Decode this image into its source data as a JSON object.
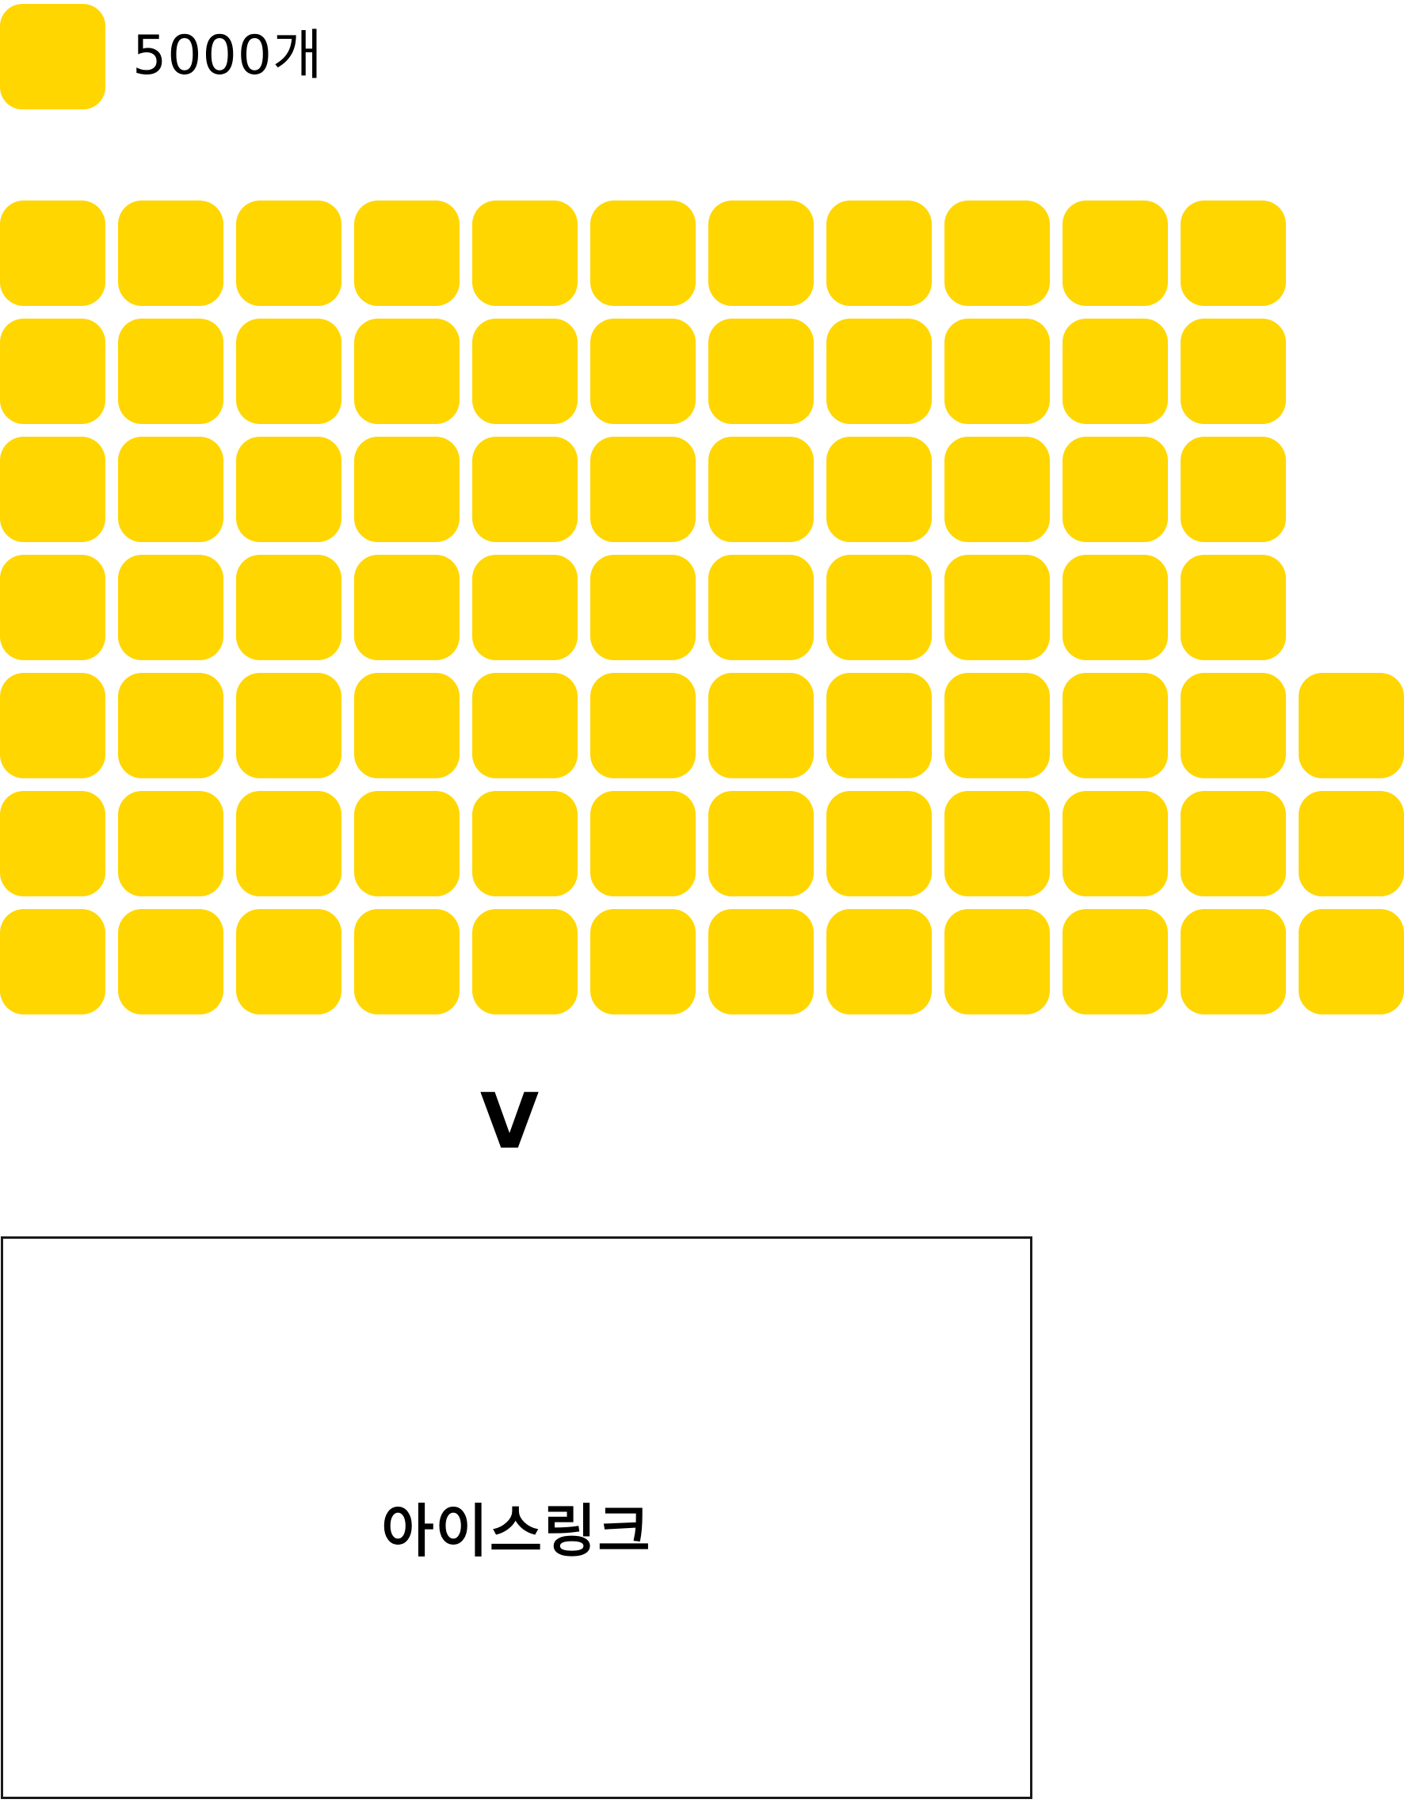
{
  "legend": {
    "label": "5000개",
    "color": "#FFD600"
  },
  "grid": {
    "rows": [
      11,
      11,
      11,
      11,
      12,
      12,
      12
    ],
    "color": "#FFD600"
  },
  "arrow": {
    "label": "V"
  },
  "target": {
    "label": "아이스링크"
  }
}
